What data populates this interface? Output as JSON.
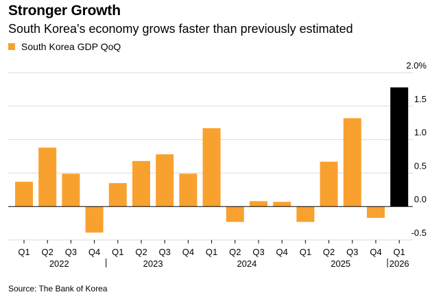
{
  "header": {
    "title": "Stronger Growth",
    "subtitle": "South Korea's economy grows faster than previously estimated"
  },
  "legend": {
    "label": "South Korea GDP QoQ"
  },
  "footer": {
    "source": "Source: The Bank of Korea"
  },
  "colors": {
    "bar": "#f9a12e",
    "highlight": "#000000",
    "grid": "#d9d9d9",
    "zero_line": "#000000",
    "text": "#000000"
  },
  "chart_data": {
    "type": "bar",
    "categories": [
      "Q1",
      "Q2",
      "Q3",
      "Q4",
      "Q1",
      "Q2",
      "Q3",
      "Q4",
      "Q1",
      "Q2",
      "Q3",
      "Q4",
      "Q1",
      "Q2",
      "Q3",
      "Q4",
      "Q1"
    ],
    "values": [
      0.37,
      0.88,
      0.49,
      -0.39,
      0.35,
      0.68,
      0.78,
      0.49,
      1.17,
      -0.23,
      0.08,
      0.07,
      -0.23,
      0.67,
      1.32,
      -0.17,
      1.78
    ],
    "highlight_index": 16,
    "year_groups": [
      {
        "label": "2022",
        "start": 0,
        "end": 3
      },
      {
        "label": "2023",
        "start": 4,
        "end": 7
      },
      {
        "label": "2024",
        "start": 8,
        "end": 11
      },
      {
        "label": "2025",
        "start": 12,
        "end": 15
      },
      {
        "label": "2026",
        "start": 16,
        "end": 16
      }
    ],
    "year_separators": [
      3.5,
      15.5
    ],
    "y_ticks": [
      {
        "value": 2.0,
        "label": "2.0%"
      },
      {
        "value": 1.5,
        "label": "1.5"
      },
      {
        "value": 1.0,
        "label": "1.0"
      },
      {
        "value": 0.5,
        "label": "0.5"
      },
      {
        "value": 0.0,
        "label": "0.0"
      },
      {
        "value": -0.5,
        "label": "-0.5"
      }
    ],
    "ylim": [
      -0.5,
      2.0
    ],
    "title": "Stronger Growth",
    "xlabel": "",
    "ylabel": "",
    "grid": true,
    "y_axis_side": "right",
    "legend_position": "top-left"
  }
}
